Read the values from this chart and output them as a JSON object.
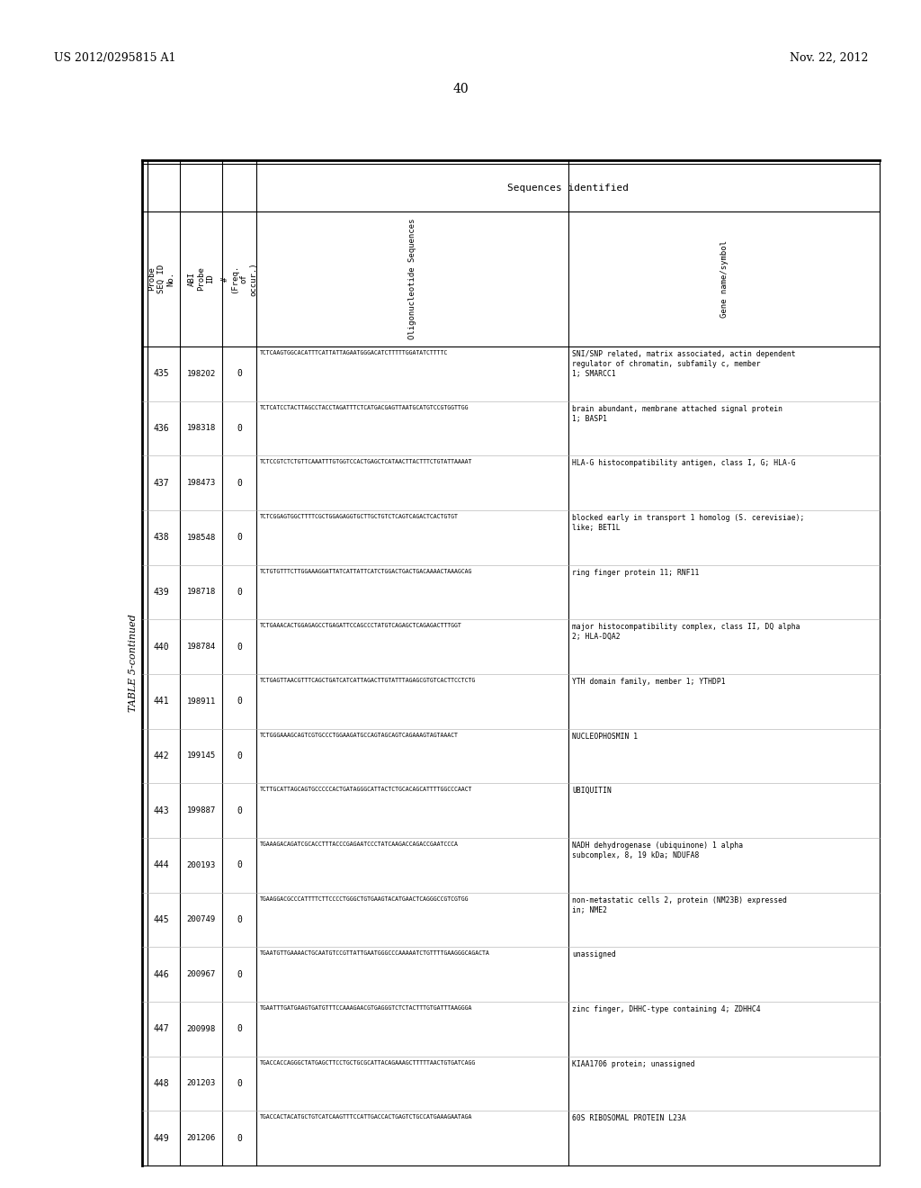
{
  "page_header_left": "US 2012/0295815 A1",
  "page_header_right": "Nov. 22, 2012",
  "page_number": "40",
  "table_title": "TABLE 5-continued",
  "section_header": "Sequences identified",
  "col_headers_short": [
    "Probe\nSEQ ID\nNo.",
    "ABI\nProbe\nID",
    "#\n(Freq.\nof\noccur.)",
    "Oligonucleotide Sequences",
    "Gene name/symbol"
  ],
  "rows": [
    [
      "435",
      "198202",
      "0",
      "TCTCAAGTGGCACATTTCATTATTAGAATGGGACATCTTTTTGGATATCTTTTC",
      "SNI/SNP related, matrix associated, actin dependent\nregulator of chromatin, subfamily c, member\n1; SMARCC1"
    ],
    [
      "436",
      "198318",
      "0",
      "TCTCATCCTACTTAGCCTACCTAGATTTCTCATGACGAGTTAATGCATGTCCGTGGTTGG",
      "brain abundant, membrane attached signal protein\n1; BASP1"
    ],
    [
      "437",
      "198473",
      "0",
      "TCTCCGTCTCTGTTCAAATTTGTGGTCCACTGAGCTCATAACTTACTTTCTGTATTAAAAT",
      "HLA-G histocompatibility antigen, class I, G; HLA-G"
    ],
    [
      "438",
      "198548",
      "0",
      "TCTCGGAGTGGCTTTTCGCTGGAGAGGTGCTTGCTGTCTCAGTCAGACTCACTGTGT",
      "blocked early in transport 1 homolog (S. cerevisiae);\nlike; BET1L"
    ],
    [
      "439",
      "198718",
      "0",
      "TCTGTGTTTCTTGGAAAGGATTATCATTATTCATCTGGACTGACTGACAAAACTAAAGCAG",
      "ring finger protein 11; RNF11"
    ],
    [
      "440",
      "198784",
      "0",
      "TCTGAAACACTGGAGAGCCTGAGATTCCAGCCCTATGTCAGAGCTCAGAGACTTTGGT",
      "major histocompatibility complex, class II, DQ alpha\n2; HLA-DQA2"
    ],
    [
      "441",
      "198911",
      "0",
      "TCTGAGTTAACGTTTCAGCTGATCATCATTAGACTTGTATTTAGAGCGTGTCACTTCCTCTG",
      "YTH domain family, member 1; YTHDP1"
    ],
    [
      "442",
      "199145",
      "0",
      "TCTGGGAAAGCAGTCGTGCCCTGGAAGATGCCAGTAGCAGTCAGAAAGTAGTAAACT",
      "NUCLEOPHOSMIN 1"
    ],
    [
      "443",
      "199887",
      "0",
      "TCTTGCATTAGCAGTGCCCCCACTGATAGGGCATTACTCTGCACAGCATTTTGGCCCAACT",
      "UBIQUITIN"
    ],
    [
      "444",
      "200193",
      "0",
      "TGAAAGACAGATCGCACCTTTACCCGAGAATCCCTATCAAGACCAGACCGAATCCCA",
      "NADH dehydrogenase (ubiquinone) 1 alpha\nsubcomplex, 8, 19 kDa; NDUFA8"
    ],
    [
      "445",
      "200749",
      "0",
      "TGAAGGACGCCCATTTTCTTCCCCTGGGCTGTGAAGTACATGAACTCAGGGCCGTCGTGG",
      "non-metastatic cells 2, protein (NM23B) expressed\nin; NME2"
    ],
    [
      "446",
      "200967",
      "0",
      "TGAATGTTGAAAACTGCAATGTCCGTTATTGAATGGGCCCAAAAATCTGTTTTGAAGGGCAGACTA",
      "unassigned"
    ],
    [
      "447",
      "200998",
      "0",
      "TGAATTTGATGAAGTGATGTTTCCAAAGAACGTGAGGGTCTCTACTTTGTGATTTAAGGGA",
      "zinc finger, DHHC-type containing 4; ZDHHC4"
    ],
    [
      "448",
      "201203",
      "0",
      "TGACCACCAGGGCTATGAGCTTCCTGCTGCGCATTACAGAAAGCTTTTTAACTGTGATCAGG",
      "KIAA1706 protein; unassigned"
    ],
    [
      "449",
      "201206",
      "0",
      "TGACCACTACATGCTGTCATCAAGTTTCCATTGACCACTGAGTCTGCCATGAAAGAATAGA",
      "60S RIBOSOMAL PROTEIN L23A"
    ]
  ],
  "background_color": "#ffffff",
  "text_color": "#000000"
}
